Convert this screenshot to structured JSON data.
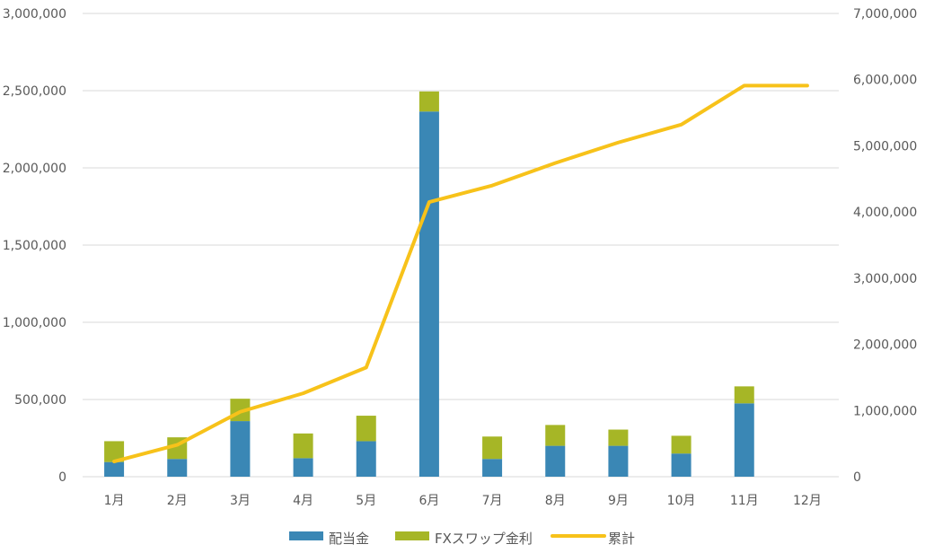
{
  "chart_data": {
    "type": "bar",
    "stacked": true,
    "categories": [
      "1月",
      "2月",
      "3月",
      "4月",
      "5月",
      "6月",
      "7月",
      "8月",
      "9月",
      "10月",
      "11月",
      "12月"
    ],
    "series": [
      {
        "name": "配当金",
        "type": "bar",
        "axis": "left",
        "color": "#3a87b5",
        "values": [
          95000,
          115000,
          360000,
          120000,
          230000,
          2365000,
          115000,
          200000,
          200000,
          150000,
          475000,
          0
        ]
      },
      {
        "name": "FXスワップ金利",
        "type": "bar",
        "axis": "left",
        "color": "#a6b626",
        "values": [
          135000,
          140000,
          145000,
          160000,
          165000,
          130000,
          145000,
          135000,
          105000,
          115000,
          110000,
          0
        ]
      },
      {
        "name": "累計",
        "type": "line",
        "axis": "right",
        "color": "#f7c21a",
        "values": [
          230000,
          480000,
          980000,
          1260000,
          1650000,
          4150000,
          4400000,
          4740000,
          5050000,
          5320000,
          5910000,
          5910000
        ]
      }
    ],
    "y_left": {
      "ylim": [
        0,
        3000000
      ],
      "ticks": [
        0,
        500000,
        1000000,
        1500000,
        2000000,
        2500000,
        3000000
      ],
      "tick_labels": [
        "0",
        "500,000",
        "1,000,000",
        "1,500,000",
        "2,000,000",
        "2,500,000",
        "3,000,000"
      ]
    },
    "y_right": {
      "ylim": [
        0,
        7000000
      ],
      "ticks": [
        0,
        1000000,
        2000000,
        3000000,
        4000000,
        5000000,
        6000000,
        7000000
      ],
      "tick_labels": [
        "0",
        "1,000,000",
        "2,000,000",
        "3,000,000",
        "4,000,000",
        "5,000,000",
        "6,000,000",
        "7,000,000"
      ]
    },
    "grid": true,
    "legend_position": "bottom"
  }
}
